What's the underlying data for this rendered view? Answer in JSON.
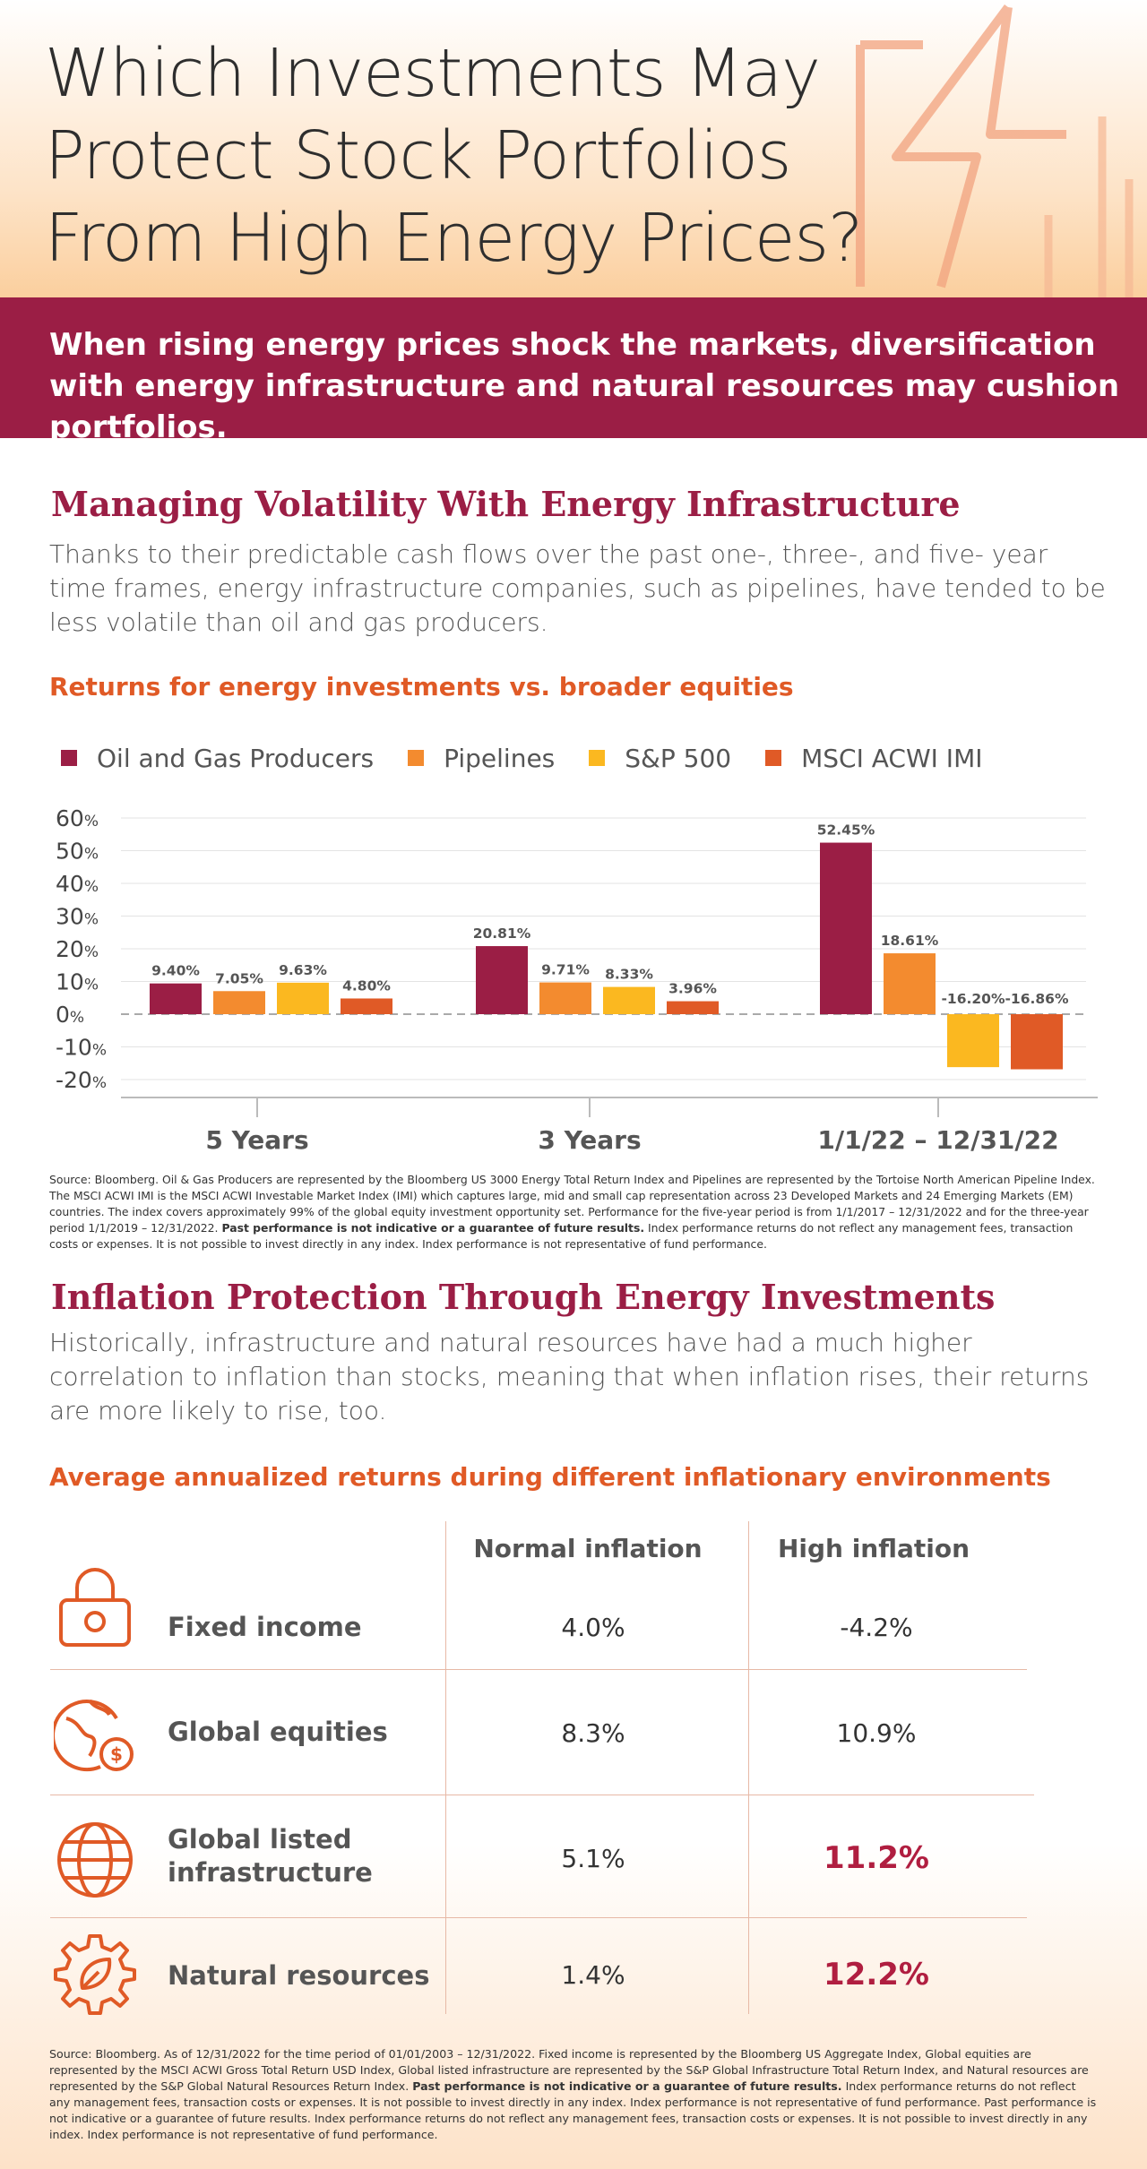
{
  "header": {
    "title_lines": [
      "Which Investments May",
      "Protect Stock Portfolios",
      "From High Energy Prices?"
    ]
  },
  "banner": {
    "text": "When rising energy prices shock the markets, diversification with energy infrastructure and natural resources may cushion portfolios."
  },
  "section1": {
    "heading": "Managing Volatility With Energy Infrastructure",
    "body": "Thanks to their predictable cash flows over the past one-, three-, and five- year time frames, energy infrastructure companies, such as pipelines, have tended to be less volatile than oil and gas producers.",
    "chart_title": "Returns for energy investments vs. broader equities",
    "source_pre": "Source: Bloomberg. Oil & Gas Producers are represented by the Bloomberg US 3000 Energy Total Return Index and Pipelines are represented by the Tortoise North American Pipeline Index. The MSCI ACWI IMI is the MSCI ACWI Investable Market Index (IMI) which captures large, mid and small cap representation across 23 Developed Markets and 24 Emerging Markets (EM) countries. The index covers approximately 99% of the global equity investment opportunity set. Performance for the five-year period is from 1/1/2017 – 12/31/2022 and for the three-year period 1/1/2019 – 12/31/2022.",
    "source_bold": "Past performance is not indicative or a guarantee of future results.",
    "source_post": "Index performance returns do not reflect any management fees, transaction costs or expenses. It is not possible to invest directly in any index. Index performance is not representative of fund performance."
  },
  "chart_data": {
    "type": "bar",
    "title": "Returns for energy investments vs. broader equities",
    "categories": [
      "5 Years",
      "3 Years",
      "1/1/22 – 12/31/22"
    ],
    "series": [
      {
        "name": "Oil and Gas Producers",
        "color": "#9b1e45",
        "values": [
          9.4,
          20.81,
          52.45
        ],
        "labels": [
          "9.40%",
          "20.81%",
          "52.45%"
        ]
      },
      {
        "name": "Pipelines",
        "color": "#f38b2f",
        "values": [
          7.05,
          9.71,
          18.61
        ],
        "labels": [
          "7.05%",
          "9.71%",
          "18.61%"
        ]
      },
      {
        "name": "S&P 500",
        "color": "#fbb820",
        "values": [
          9.63,
          8.33,
          -16.2
        ],
        "labels": [
          "9.63%",
          "8.33%",
          "-16.20%"
        ]
      },
      {
        "name": "MSCI ACWI IMI",
        "color": "#e05a26",
        "values": [
          4.8,
          3.96,
          -16.86
        ],
        "labels": [
          "4.80%",
          "3.96%",
          "-16.86%"
        ]
      }
    ],
    "yticks": [
      60,
      50,
      40,
      30,
      20,
      10,
      0,
      -10,
      -20
    ],
    "ytick_unit": "%",
    "ylim": [
      -20,
      60
    ],
    "grid": true,
    "legend": "top-left"
  },
  "section2": {
    "heading": "Inflation Protection Through Energy Investments",
    "body": "Historically, infrastructure and natural resources have had a much higher correlation to inflation than stocks, meaning that when inflation rises, their returns are more likely to rise, too.",
    "table_title": "Average annualized returns during different inflationary environments",
    "columns": [
      "Normal inflation",
      "High inflation"
    ],
    "rows": [
      {
        "label": "Fixed income",
        "icon": "lock-icon",
        "normal": "4.0%",
        "high": "-4.2%"
      },
      {
        "label": "Global equities",
        "icon": "globe-dollar-icon",
        "normal": "8.3%",
        "high": "10.9%"
      },
      {
        "label": "Global listed infrastructure",
        "icon": "globe-grid-icon",
        "normal": "5.1%",
        "high": "11.2%"
      },
      {
        "label": "Natural resources",
        "icon": "gear-leaf-icon",
        "normal": "1.4%",
        "high": "12.2%"
      }
    ],
    "source_pre": "Source: Bloomberg. As of 12/31/2022 for the time period of 01/01/2003 – 12/31/2022. Fixed income is represented by the Bloomberg US Aggregate Index, Global equities are represented by the MSCI ACWI Gross Total Return USD Index, Global listed infrastructure are represented by the S&P Global Infrastructure Total Return Index, and Natural resources are represented by the S&P Global Natural Resources Return Index.",
    "source_bold": "Past performance is not indicative or a guarantee of future results.",
    "source_post": "Index performance returns do not reflect any management fees, transaction costs or expenses. It is not possible to invest directly in any index. Index performance is not representative of fund performance. Past performance is not indicative or a guarantee of future results. Index performance returns do not reflect any management fees, transaction costs or expenses. It is not possible to invest directly in any index. Index performance is not representative of fund performance."
  },
  "colors": {
    "brand": "#9b1e45",
    "accent": "#e05a26",
    "highlight": "#b01e40"
  }
}
